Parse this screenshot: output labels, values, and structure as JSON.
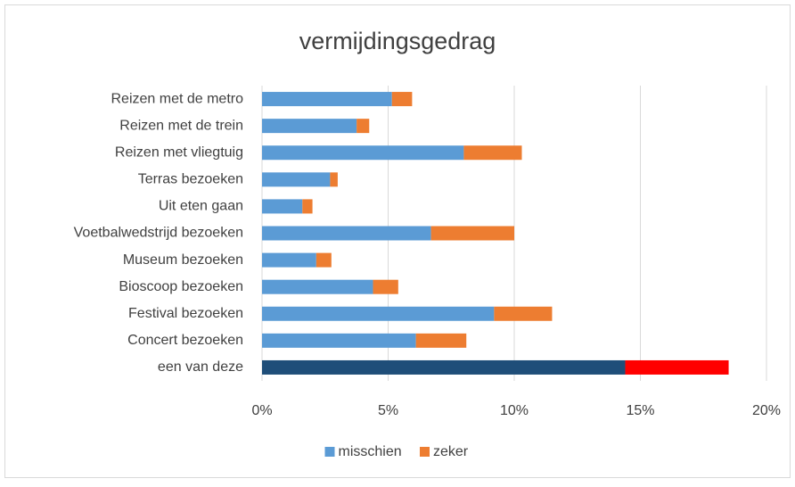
{
  "chart_data": {
    "type": "bar",
    "orientation": "horizontal",
    "stacked": true,
    "title": "vermijdingsgedrag",
    "categories": [
      "Reizen met de metro",
      "Reizen met de trein",
      "Reizen met vliegtuig",
      "Terras bezoeken",
      "Uit eten gaan",
      "Voetbalwedstrijd bezoeken",
      "Museum bezoeken",
      "Bioscoop bezoeken",
      "Festival bezoeken",
      "Concert bezoeken",
      "een van deze"
    ],
    "series": [
      {
        "name": "misschien",
        "color": "#5b9bd5",
        "colors": [
          "#5b9bd5",
          "#5b9bd5",
          "#5b9bd5",
          "#5b9bd5",
          "#5b9bd5",
          "#5b9bd5",
          "#5b9bd5",
          "#5b9bd5",
          "#5b9bd5",
          "#5b9bd5",
          "#1f4e79"
        ],
        "values": [
          5.15,
          3.75,
          8.0,
          2.7,
          1.6,
          6.7,
          2.15,
          4.4,
          9.2,
          6.1,
          14.4
        ]
      },
      {
        "name": "zeker",
        "color": "#ed7d31",
        "colors": [
          "#ed7d31",
          "#ed7d31",
          "#ed7d31",
          "#ed7d31",
          "#ed7d31",
          "#ed7d31",
          "#ed7d31",
          "#ed7d31",
          "#ed7d31",
          "#ed7d31",
          "#ff0000"
        ],
        "values": [
          0.8,
          0.5,
          2.3,
          0.3,
          0.4,
          3.3,
          0.6,
          1.0,
          2.3,
          2.0,
          4.1
        ]
      }
    ],
    "xlim": [
      0,
      20
    ],
    "xticks": [
      {
        "value": 0,
        "label": "0%"
      },
      {
        "value": 5,
        "label": "5%"
      },
      {
        "value": 10,
        "label": "10%"
      },
      {
        "value": 15,
        "label": "15%"
      },
      {
        "value": 20,
        "label": "20%"
      }
    ],
    "grid": true,
    "legend": "bottom"
  }
}
